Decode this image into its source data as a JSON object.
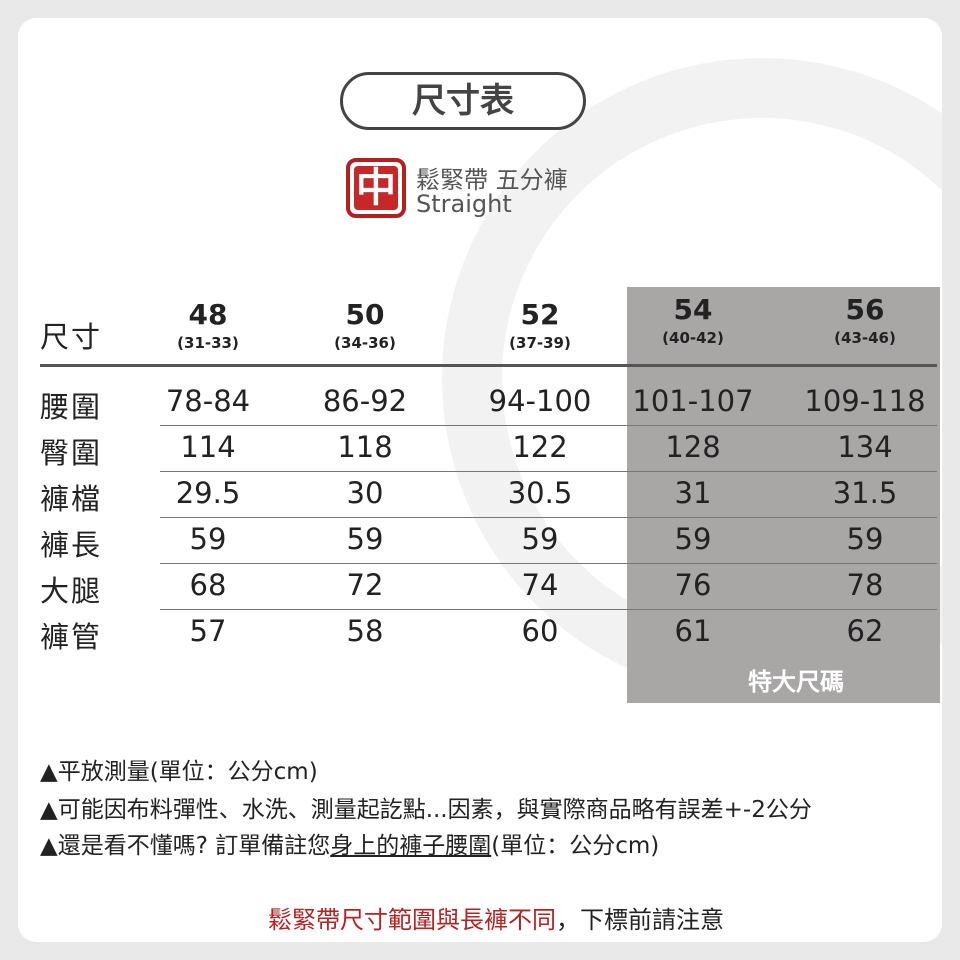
{
  "title": "尺寸表",
  "logo": "中",
  "product": {
    "name": "鬆緊帶 五分褲",
    "fit": "Straight"
  },
  "table": {
    "header_label": "尺寸",
    "sizes": [
      {
        "size": "48",
        "range": "(31-33)"
      },
      {
        "size": "50",
        "range": "(34-36)"
      },
      {
        "size": "52",
        "range": "(37-39)"
      },
      {
        "size": "54",
        "range": "(40-42)"
      },
      {
        "size": "56",
        "range": "(43-46)"
      }
    ],
    "rows": [
      {
        "label": "腰圍",
        "values": [
          "78-84",
          "86-92",
          "94-100",
          "101-107",
          "109-118"
        ]
      },
      {
        "label": "臀圍",
        "values": [
          "114",
          "118",
          "122",
          "128",
          "134"
        ]
      },
      {
        "label": "褲檔",
        "values": [
          "29.5",
          "30",
          "30.5",
          "31",
          "31.5"
        ]
      },
      {
        "label": "褲長",
        "values": [
          "59",
          "59",
          "59",
          "59",
          "59"
        ]
      },
      {
        "label": "大腿",
        "values": [
          "68",
          "72",
          "74",
          "76",
          "78"
        ]
      },
      {
        "label": "褲管",
        "values": [
          "57",
          "58",
          "60",
          "61",
          "62"
        ]
      }
    ],
    "plus_size_label": "特大尺碼"
  },
  "notes": {
    "n1": "▲平放測量(單位：公分cm)",
    "n2": "▲可能因布料彈性、水洗、測量起訖點...因素，與實際商品略有誤差+-2公分",
    "n3a": "▲還是看不懂嗎? 訂單備註您",
    "n3b": "身上的褲子腰圍",
    "n3c": "(單位：公分cm)"
  },
  "footer": {
    "red": "鬆緊帶尺寸範圍與長褲不同",
    "black": "，下標前請注意"
  },
  "colors": {
    "accent": "#c62828",
    "plus_size_bg": "#a9a6a6"
  }
}
